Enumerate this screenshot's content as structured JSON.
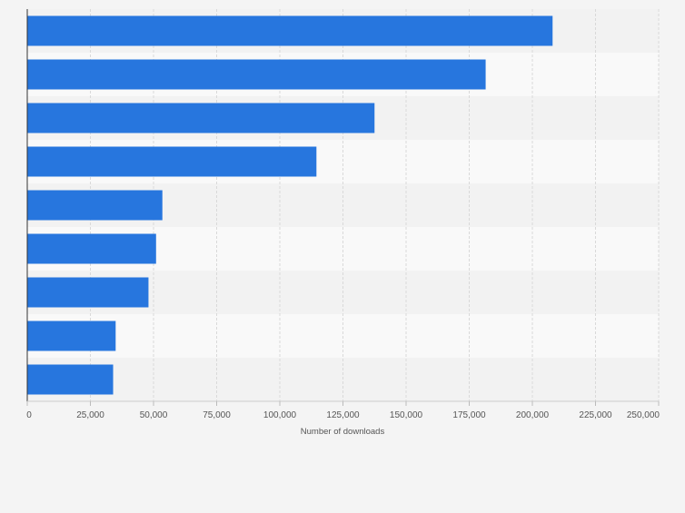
{
  "chart_data": {
    "type": "bar",
    "orientation": "horizontal",
    "title": "",
    "xlabel": "Number of downloads",
    "ylabel": "",
    "categories": [
      "",
      "",
      "",
      "",
      "",
      "",
      "",
      "",
      ""
    ],
    "values": [
      208000,
      181500,
      137500,
      114500,
      53500,
      51000,
      48000,
      35000,
      34000
    ],
    "xlim": [
      0,
      250000
    ],
    "x_ticks": [
      0,
      25000,
      50000,
      75000,
      100000,
      125000,
      150000,
      175000,
      200000,
      225000,
      250000
    ],
    "x_tick_labels": [
      "0",
      "25,000",
      "50,000",
      "75,000",
      "100,000",
      "125,000",
      "150,000",
      "175,000",
      "200,000",
      "225,000",
      "250,000"
    ],
    "grid": true,
    "legend": "none",
    "colors": {
      "bar": "#2776de",
      "band_light": "#f9f9f9",
      "band_dark": "#f2f2f2",
      "grid": "#d9d9d9",
      "axis": "#333333",
      "background": "#f4f4f4"
    }
  }
}
